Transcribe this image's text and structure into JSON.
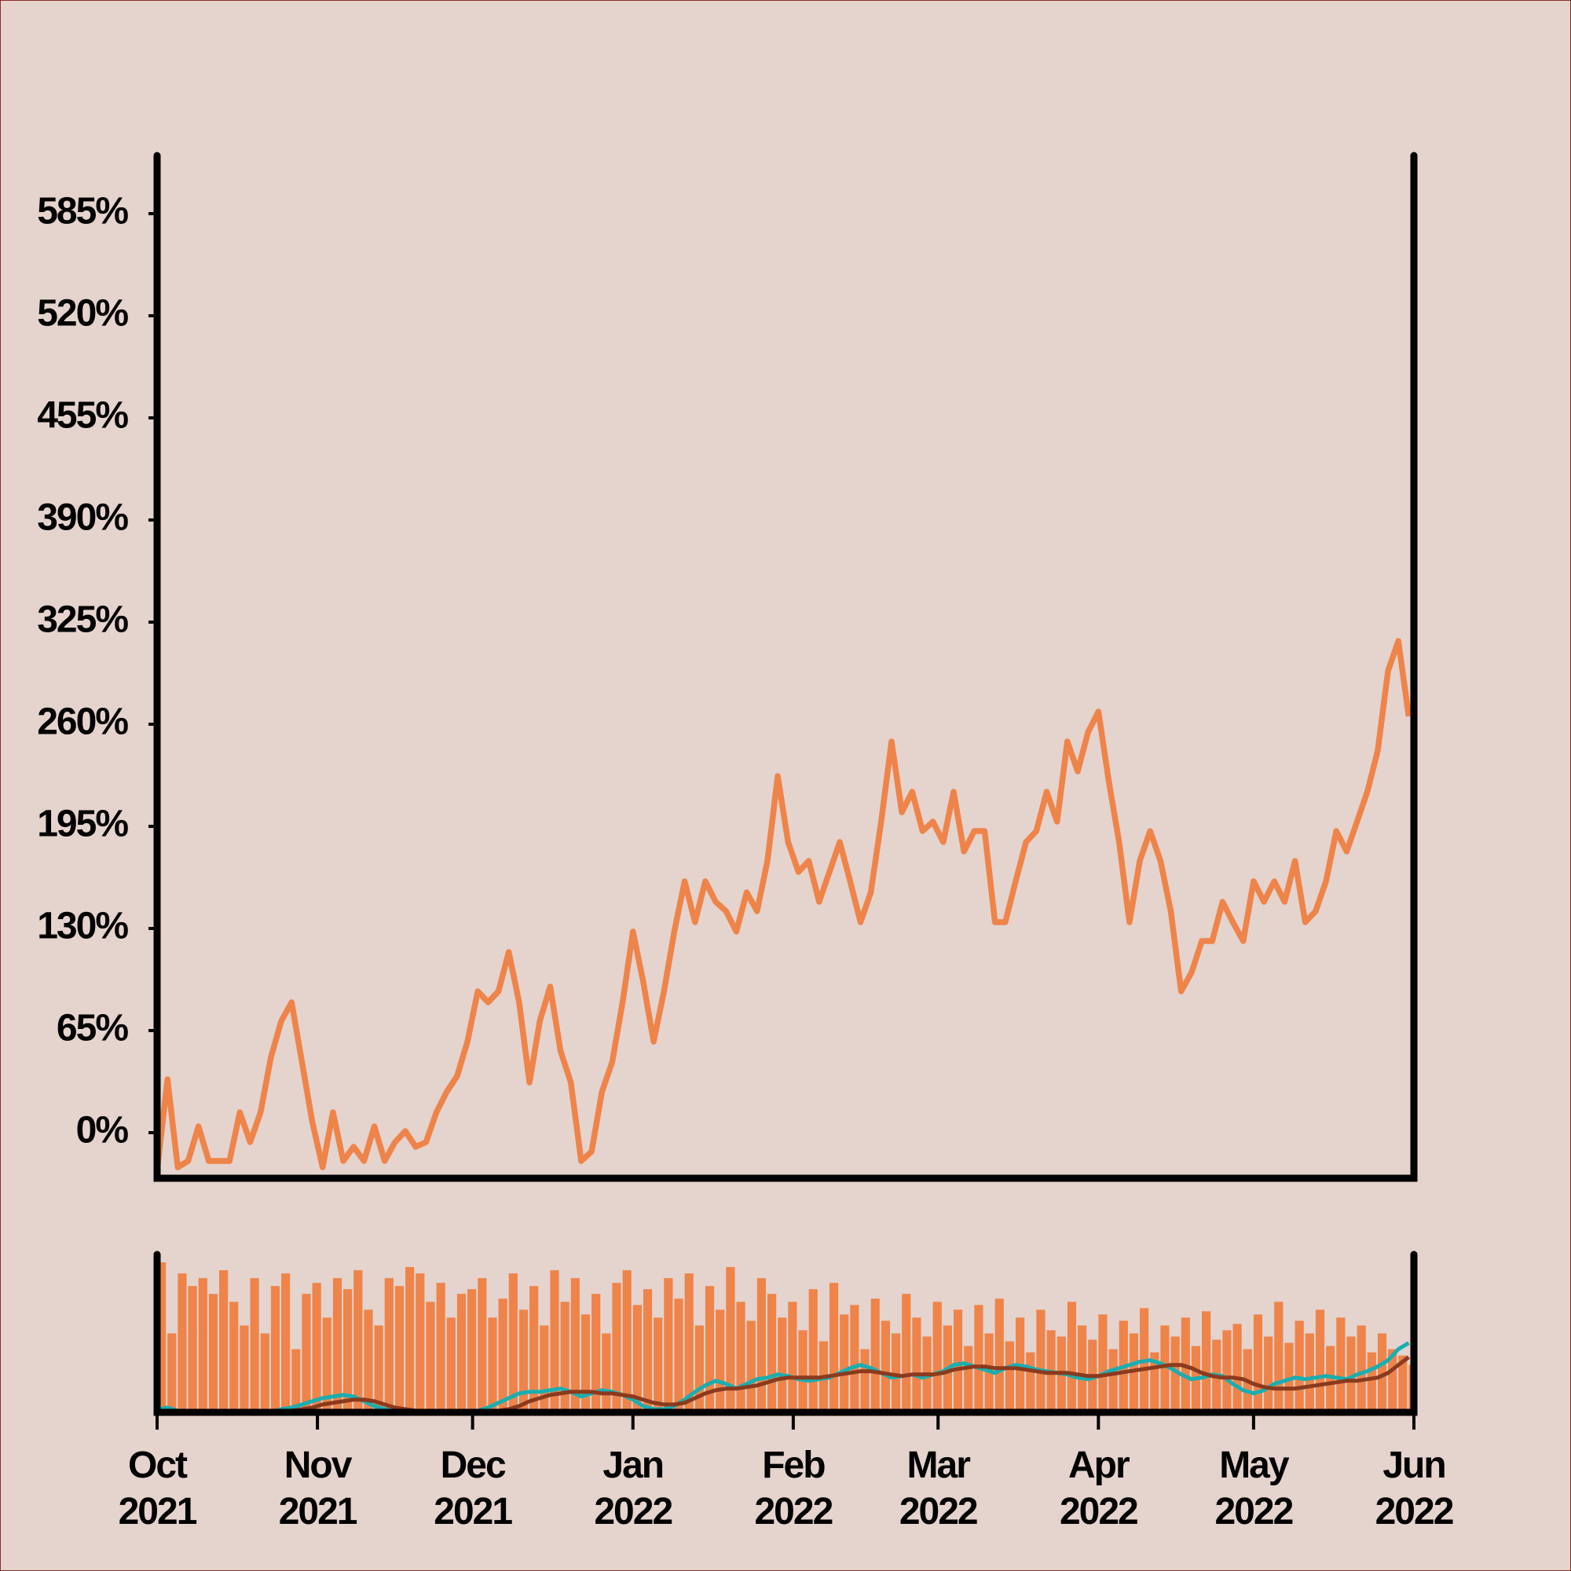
{
  "chart_data": [
    {
      "type": "line",
      "xlim": [
        0,
        243
      ],
      "ylim": [
        -29,
        622
      ],
      "yticks": [
        {
          "value": 0,
          "label": "0%"
        },
        {
          "value": 65,
          "label": "65%"
        },
        {
          "value": 130,
          "label": "130%"
        },
        {
          "value": 195,
          "label": "195%"
        },
        {
          "value": 260,
          "label": "260%"
        },
        {
          "value": 325,
          "label": "325%"
        },
        {
          "value": 390,
          "label": "390%"
        },
        {
          "value": 455,
          "label": "455%"
        },
        {
          "value": 520,
          "label": "520%"
        },
        {
          "value": 585,
          "label": "585%"
        }
      ],
      "x": [
        0,
        2,
        4,
        6,
        8,
        10,
        12,
        14,
        16,
        18,
        20,
        22,
        24,
        26,
        28,
        30,
        32,
        34,
        36,
        38,
        40,
        42,
        44,
        46,
        48,
        50,
        52,
        54,
        56,
        58,
        60,
        62,
        64,
        66,
        68,
        70,
        72,
        74,
        76,
        78,
        80,
        82,
        84,
        86,
        88,
        90,
        92,
        94,
        96,
        98,
        100,
        102,
        104,
        106,
        108,
        110,
        112,
        114,
        116,
        118,
        120,
        122,
        124,
        126,
        128,
        130,
        132,
        134,
        136,
        138,
        140,
        142,
        144,
        146,
        148,
        150,
        152,
        154,
        156,
        158,
        160,
        162,
        164,
        166,
        168,
        170,
        172,
        174,
        176,
        178,
        180,
        182,
        184,
        186,
        188,
        190,
        192,
        194,
        196,
        198,
        200,
        202,
        204,
        206,
        208,
        210,
        212,
        214,
        216,
        218,
        220,
        222,
        224,
        226,
        228,
        230,
        232,
        234,
        236,
        238,
        240,
        242
      ],
      "series": [
        {
          "color": "#ee844a",
          "values": [
            -24,
            34,
            -22,
            -18,
            4,
            -18,
            -18,
            -18,
            13,
            -6,
            13,
            48,
            71,
            83,
            45,
            7,
            -22,
            13,
            -18,
            -9,
            -18,
            4,
            -18,
            -6,
            1,
            -9,
            -6,
            13,
            26,
            36,
            58,
            90,
            83,
            90,
            115,
            83,
            32,
            71,
            93,
            52,
            32,
            -18,
            -12,
            26,
            45,
            83,
            128,
            96,
            58,
            90,
            128,
            160,
            134,
            160,
            147,
            141,
            128,
            153,
            141,
            173,
            227,
            185,
            166,
            173,
            147,
            166,
            185,
            160,
            134,
            153,
            198,
            249,
            204,
            217,
            192,
            198,
            185,
            217,
            179,
            192,
            192,
            134,
            134,
            160,
            185,
            192,
            217,
            198,
            249,
            230,
            255,
            268,
            224,
            185,
            134,
            173,
            192,
            173,
            141,
            90,
            102,
            122,
            122,
            147,
            134,
            122,
            160,
            147,
            160,
            147,
            173,
            134,
            141,
            160,
            192,
            179,
            198,
            217,
            243,
            294,
            313,
            265
          ]
        }
      ]
    },
    {
      "type": "bar",
      "xlim": [
        0,
        243
      ],
      "ylim": [
        0,
        100
      ],
      "xticks": [
        {
          "value": 0,
          "label": "Oct\n2021"
        },
        {
          "value": 31,
          "label": "Nov\n2021"
        },
        {
          "value": 61,
          "label": "Dec\n2021"
        },
        {
          "value": 92,
          "label": "Jan\n2022"
        },
        {
          "value": 123,
          "label": "Feb\n2022"
        },
        {
          "value": 151,
          "label": "Mar\n2022"
        },
        {
          "value": 182,
          "label": "Apr\n2022"
        },
        {
          "value": 212,
          "label": "May\n2022"
        },
        {
          "value": 243,
          "label": "Jun\n2022"
        }
      ],
      "x": [
        0,
        2,
        4,
        6,
        8,
        10,
        12,
        14,
        16,
        18,
        20,
        22,
        24,
        26,
        28,
        30,
        32,
        34,
        36,
        38,
        40,
        42,
        44,
        46,
        48,
        50,
        52,
        54,
        56,
        58,
        60,
        62,
        64,
        66,
        68,
        70,
        72,
        74,
        76,
        78,
        80,
        82,
        84,
        86,
        88,
        90,
        92,
        94,
        96,
        98,
        100,
        102,
        104,
        106,
        108,
        110,
        112,
        114,
        116,
        118,
        120,
        122,
        124,
        126,
        128,
        130,
        132,
        134,
        136,
        138,
        140,
        142,
        144,
        146,
        148,
        150,
        152,
        154,
        156,
        158,
        160,
        162,
        164,
        166,
        168,
        170,
        172,
        174,
        176,
        178,
        180,
        182,
        184,
        186,
        188,
        190,
        192,
        194,
        196,
        198,
        200,
        202,
        204,
        206,
        208,
        210,
        212,
        214,
        216,
        218,
        220,
        222,
        224,
        226,
        228,
        230,
        232,
        234,
        236,
        238,
        240,
        242
      ],
      "series": [
        {
          "type": "bar",
          "color": "#ee844a",
          "values": [
            95,
            50,
            88,
            80,
            85,
            75,
            90,
            70,
            55,
            85,
            50,
            80,
            88,
            40,
            75,
            82,
            60,
            85,
            78,
            90,
            65,
            55,
            85,
            80,
            92,
            88,
            70,
            82,
            60,
            75,
            78,
            85,
            60,
            72,
            88,
            65,
            80,
            55,
            90,
            70,
            85,
            62,
            75,
            50,
            82,
            90,
            68,
            78,
            60,
            85,
            72,
            88,
            55,
            80,
            65,
            92,
            70,
            58,
            85,
            75,
            60,
            70,
            52,
            78,
            45,
            82,
            62,
            68,
            40,
            72,
            58,
            50,
            75,
            60,
            48,
            70,
            55,
            65,
            42,
            68,
            50,
            72,
            45,
            60,
            38,
            65,
            52,
            48,
            70,
            55,
            46,
            62,
            40,
            58,
            50,
            66,
            38,
            55,
            48,
            60,
            42,
            64,
            46,
            52,
            56,
            40,
            62,
            48,
            70,
            44,
            58,
            50,
            65,
            42,
            60,
            48,
            55,
            38,
            50,
            40,
            36,
            30
          ]
        },
        {
          "type": "line",
          "color": "#1aaeb0",
          "values": [
            2,
            3,
            1,
            0,
            0,
            0,
            0,
            0,
            0,
            0,
            0,
            0,
            2,
            3,
            5,
            7,
            9,
            10,
            11,
            10,
            7,
            4,
            2,
            1,
            0,
            0,
            0,
            0,
            0,
            0,
            0,
            1,
            3,
            6,
            9,
            12,
            13,
            13,
            14,
            15,
            13,
            10,
            12,
            14,
            13,
            11,
            8,
            4,
            2,
            2,
            4,
            8,
            13,
            17,
            20,
            18,
            15,
            18,
            21,
            22,
            24,
            23,
            21,
            20,
            21,
            22,
            25,
            28,
            30,
            28,
            25,
            22,
            23,
            24,
            22,
            24,
            26,
            30,
            31,
            29,
            27,
            25,
            28,
            30,
            29,
            27,
            26,
            25,
            24,
            22,
            21,
            23,
            26,
            28,
            30,
            32,
            33,
            31,
            28,
            24,
            21,
            22,
            24,
            23,
            18,
            14,
            12,
            14,
            18,
            20,
            22,
            21,
            22,
            23,
            22,
            21,
            24,
            26,
            29,
            33,
            40,
            44
          ]
        },
        {
          "type": "line",
          "color": "#8b3a1e",
          "values": [
            0,
            1,
            1,
            1,
            0,
            0,
            0,
            0,
            0,
            0,
            0,
            0,
            0,
            1,
            2,
            3,
            5,
            6,
            7,
            8,
            8,
            7,
            5,
            3,
            2,
            1,
            0,
            0,
            0,
            0,
            0,
            0,
            0,
            1,
            2,
            4,
            7,
            9,
            11,
            12,
            13,
            13,
            13,
            12,
            12,
            11,
            10,
            8,
            6,
            5,
            5,
            6,
            9,
            12,
            14,
            15,
            15,
            16,
            17,
            19,
            21,
            22,
            22,
            22,
            22,
            23,
            24,
            25,
            26,
            26,
            25,
            24,
            23,
            24,
            24,
            24,
            25,
            27,
            28,
            29,
            29,
            28,
            28,
            28,
            27,
            26,
            25,
            25,
            25,
            24,
            23,
            23,
            24,
            25,
            26,
            27,
            28,
            29,
            30,
            30,
            28,
            25,
            23,
            22,
            22,
            21,
            18,
            16,
            15,
            15,
            15,
            16,
            17,
            18,
            19,
            20,
            20,
            21,
            22,
            25,
            30,
            35
          ]
        }
      ]
    }
  ]
}
